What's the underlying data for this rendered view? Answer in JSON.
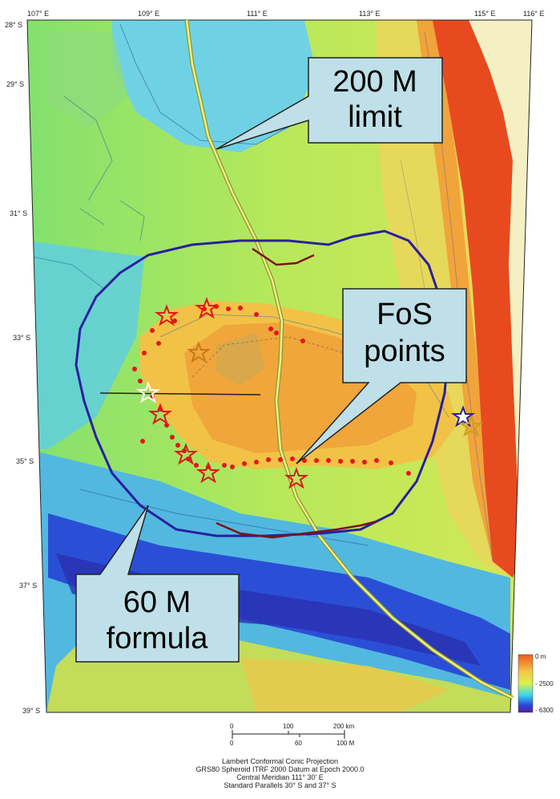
{
  "top_ticks": [
    "107° E",
    "109° E",
    "111° E",
    "113° E",
    "115° E",
    "116° E"
  ],
  "left_ticks": [
    "28° S",
    "29° S",
    "31° S",
    "33° S",
    "35° S",
    "37° S",
    "39° S"
  ],
  "callouts": {
    "limit_200m": {
      "line1": "200 M",
      "line2": "limit"
    },
    "fos_points": {
      "line1": "FoS",
      "line2": "points"
    },
    "formula_60m": {
      "line1": "60 M",
      "line2": "formula"
    }
  },
  "depth_legend": {
    "labels": [
      "0 m",
      "- 2500",
      "- 6300"
    ],
    "colors": [
      "#f0581c",
      "#f2c94a",
      "#d9f24a",
      "#3ad6f0",
      "#2a45d6",
      "#5a1aa8"
    ]
  },
  "scale_bar": {
    "km_labels": [
      "0",
      "100",
      "200 km"
    ],
    "nm_labels": [
      "0",
      "60",
      "100 M"
    ]
  },
  "projection": [
    "Lambert Conformal Conic Projection",
    "GRS80 Spheroid ITRF 2000 Datum at Epoch 2000.0",
    "Central Meridian 111° 30' E",
    "Standard Parallels 30° S and 37° S"
  ],
  "colors": {
    "land": "#f5f0c4",
    "shelf": "#e84a1f",
    "fos_marker": "#e01818",
    "foot_line": "#7a1414",
    "ext_60m": "#2a1fa0",
    "limit_200m": "#e6e07a"
  }
}
